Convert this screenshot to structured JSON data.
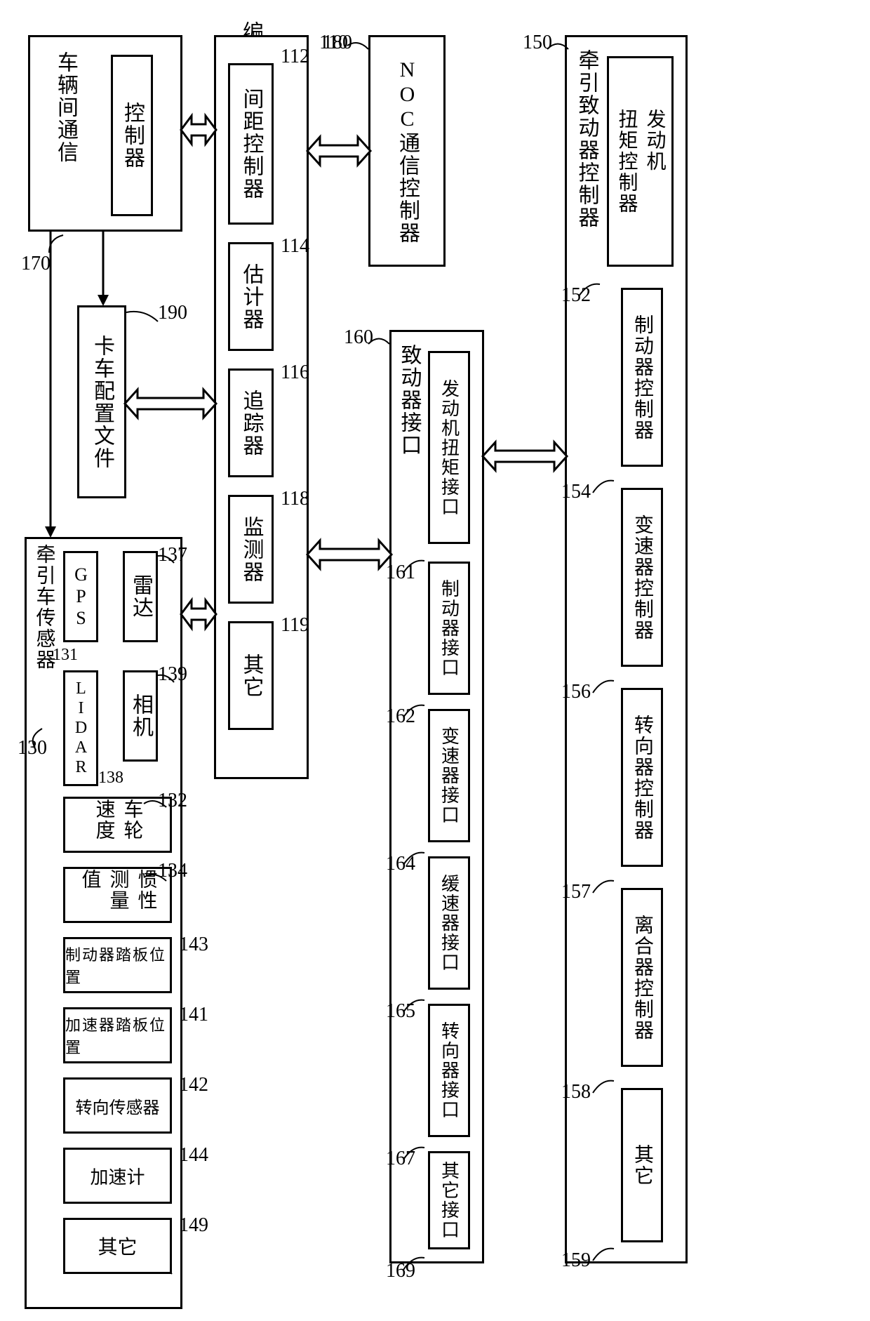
{
  "title": "编队控制器",
  "blocks": {
    "ivc": {
      "ref": "170",
      "label": "车辆间通信",
      "inner": "控制器"
    },
    "noc": {
      "ref": "180",
      "label": "NOC通信控制器"
    },
    "truck_profile": {
      "ref": "190",
      "label": "卡车配置文件"
    },
    "platoon_controller": {
      "ref": "110",
      "items": [
        {
          "ref": "112",
          "label": "间距控制器"
        },
        {
          "ref": "114",
          "label": "估计器"
        },
        {
          "ref": "116",
          "label": "追踪器"
        },
        {
          "ref": "118",
          "label": "监测器"
        },
        {
          "ref": "119",
          "label": "其它"
        }
      ]
    },
    "sensors": {
      "ref": "130",
      "title": "牵引车传感器",
      "gps": {
        "ref": "131",
        "label": "GPS"
      },
      "lidar": {
        "ref": "138",
        "label": "LIDAR"
      },
      "radar": {
        "ref": "137",
        "label": "雷达"
      },
      "camera": {
        "ref": "139",
        "label": "相机"
      },
      "items": [
        {
          "ref": "132",
          "label": "车轮速度"
        },
        {
          "ref": "134",
          "label": "惯性测量值"
        },
        {
          "ref": "143",
          "label": "制动器踏板位置"
        },
        {
          "ref": "141",
          "label": "加速器踏板位置"
        },
        {
          "ref": "142",
          "label": "转向传感器"
        },
        {
          "ref": "144",
          "label": "加速计"
        },
        {
          "ref": "149",
          "label": "其它"
        }
      ]
    },
    "actuator_if": {
      "ref": "160",
      "title": "致动器接口",
      "items": [
        {
          "ref": "161",
          "label": "发动机扭矩接口"
        },
        {
          "ref": "162",
          "label": "制动器接口"
        },
        {
          "ref": "164",
          "label": "变速器接口"
        },
        {
          "ref": "165",
          "label": "缓速器接口"
        },
        {
          "ref": "167",
          "label": "转向器接口"
        },
        {
          "ref": "169",
          "label": "其它接口"
        }
      ]
    },
    "actuator_ctrl": {
      "ref": "150",
      "title": "牵引致动器控制器",
      "items": [
        {
          "ref": "152",
          "label": "发动机\n扭矩控制器"
        },
        {
          "ref": "154",
          "label": "制动器控制器"
        },
        {
          "ref": "156",
          "label": "变速器控制器"
        },
        {
          "ref": "157",
          "label": "转向器控制器"
        },
        {
          "ref": "158",
          "label": "离合器控制器"
        },
        {
          "ref": "159",
          "label": "其它"
        }
      ]
    }
  },
  "style": {
    "stroke": "#000000",
    "stroke_width": 3,
    "font_size_label": 28,
    "font_size_box": 30,
    "arrow_fill": "#ffffff",
    "arrow_stroke": "#000000",
    "arrow_stroke_width": 3
  }
}
